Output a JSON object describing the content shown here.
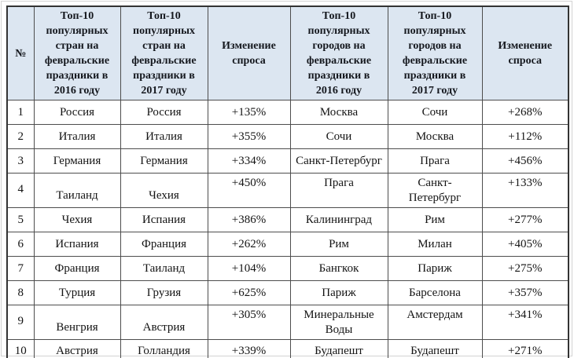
{
  "colors": {
    "header_bg": "#dce6f1",
    "outer_border": "#333333",
    "inner_border": "#4d4d4d",
    "header_text": "#15181e",
    "body_text": "#141414"
  },
  "table": {
    "headers": [
      "№",
      "Топ-10\nпопулярных\nстран на\nфевральские\nпраздники в\n2016 году",
      "Топ-10\nпопулярных\nстран на\nфевральские\nпраздники в\n2017 году",
      "Изменение\nспроса",
      "Топ-10\nпопулярных\nгородов на\nфевральские\nпраздники в\n2016 году",
      "Топ-10\nпопулярных\nгородов на\nфевральские\nпраздники в\n2017 году",
      "Изменение\nспроса"
    ],
    "rows": [
      [
        "1",
        "Россия",
        "Россия",
        "+135%",
        "Москва",
        "Сочи",
        "+268%"
      ],
      [
        "2",
        "Италия",
        "Италия",
        "+355%",
        "Сочи",
        "Москва",
        "+112%"
      ],
      [
        "3",
        "Германия",
        "Германия",
        "+334%",
        "Санкт-Петербург",
        "Прага",
        "+456%"
      ],
      [
        "4",
        "Таиланд",
        "Чехия",
        "+450%",
        "Прага",
        "Санкт-\nПетербург",
        "+133%"
      ],
      [
        "5",
        "Чехия",
        "Испания",
        "+386%",
        "Калининград",
        "Рим",
        "+277%"
      ],
      [
        "6",
        "Испания",
        "Франция",
        "+262%",
        "Рим",
        "Милан",
        "+405%"
      ],
      [
        "7",
        "Франция",
        "Таиланд",
        "+104%",
        "Бангкок",
        "Париж",
        "+275%"
      ],
      [
        "8",
        "Турция",
        "Грузия",
        "+625%",
        "Париж",
        "Барселона",
        "+357%"
      ],
      [
        "9",
        "Венгрия",
        "Австрия",
        "+305%",
        "Минеральные\nВоды",
        "Амстердам",
        "+341%"
      ],
      [
        "10",
        "Австрия",
        "Голландия",
        "+339%",
        "Будапешт",
        "Будапешт",
        "+271%"
      ]
    ]
  }
}
